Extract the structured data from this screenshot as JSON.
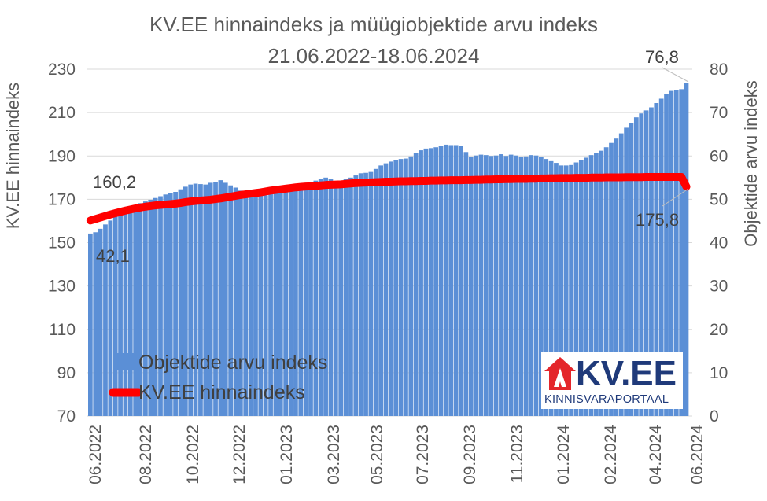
{
  "chart_data": {
    "type": "bar+line",
    "title": "KV.EE hinnaindeks ja müügiobjektide arvu indeks",
    "subtitle": "21.06.2022-18.06.2024",
    "ylabel_left": "KV.EE hinnaindeks",
    "ylabel_right": "Objektide arvu indeks",
    "ylim_left": [
      70,
      230
    ],
    "yticks_left": [
      70,
      90,
      110,
      130,
      150,
      170,
      190,
      210,
      230
    ],
    "ylim_right": [
      0,
      80
    ],
    "yticks_right": [
      0,
      10,
      20,
      30,
      40,
      50,
      60,
      70,
      80
    ],
    "x_tick_labels": [
      "06.2022",
      "08.2022",
      "10.2022",
      "12.2022",
      "01.2023",
      "03.2023",
      "05.2023",
      "07.2023",
      "09.2023",
      "11.2023",
      "01.2024",
      "02.2024",
      "04.2024",
      "06.2024"
    ],
    "legend_placement": "bottom-left",
    "series": [
      {
        "name": "Objektide arvu indeks",
        "type": "bar",
        "axis": "right",
        "color": "#5b8fd6",
        "values": [
          42.1,
          42.4,
          43.2,
          44.2,
          45.1,
          46.0,
          46.8,
          47.5,
          48.2,
          48.7,
          49.1,
          49.5,
          49.9,
          50.3,
          50.7,
          51.1,
          51.4,
          51.7,
          52.3,
          52.9,
          53.4,
          53.6,
          53.5,
          53.4,
          53.8,
          54.0,
          54.4,
          53.8,
          53.2,
          52.7,
          52.0,
          51.7,
          51.8,
          51.5,
          51.0,
          50.9,
          51.2,
          51.4,
          51.6,
          51.8,
          52.2,
          52.6,
          53.0,
          53.4,
          53.9,
          54.3,
          54.7,
          55.0,
          54.6,
          54.1,
          54.2,
          54.6,
          55.0,
          55.5,
          56.0,
          56.1,
          56.3,
          57.0,
          57.8,
          58.3,
          58.7,
          59.1,
          59.3,
          59.4,
          59.9,
          60.6,
          61.3,
          61.7,
          61.8,
          62.0,
          62.3,
          62.6,
          62.5,
          62.5,
          62.4,
          60.9,
          59.7,
          60.1,
          60.3,
          60.2,
          60.0,
          60.1,
          60.4,
          60.0,
          60.3,
          60.1,
          59.7,
          59.9,
          60.2,
          60.1,
          59.8,
          59.3,
          58.8,
          58.4,
          57.8,
          57.8,
          57.9,
          58.5,
          59.0,
          59.6,
          60.2,
          60.6,
          61.2,
          62.0,
          63.0,
          64.0,
          65.2,
          66.5,
          67.6,
          68.9,
          69.8,
          70.5,
          71.2,
          72.2,
          73.2,
          74.2,
          75.0,
          75.1,
          75.4,
          76.8
        ]
      },
      {
        "name": "KV.EE hinnaindeks",
        "type": "line",
        "axis": "left",
        "color": "#ff0000",
        "values": [
          160.2,
          160.9,
          161.6,
          162.3,
          163.0,
          163.6,
          164.2,
          164.8,
          165.3,
          165.8,
          166.2,
          166.6,
          166.9,
          167.2,
          167.4,
          167.6,
          167.8,
          168.0,
          168.3,
          168.7,
          169.0,
          169.2,
          169.4,
          169.6,
          169.8,
          170.1,
          170.4,
          170.8,
          171.2,
          171.6,
          172.0,
          172.3,
          172.6,
          172.9,
          173.2,
          173.6,
          174.0,
          174.3,
          174.6,
          174.9,
          175.2,
          175.5,
          175.7,
          175.9,
          176.0,
          176.2,
          176.4,
          176.6,
          176.7,
          176.8,
          176.9,
          177.1,
          177.3,
          177.5,
          177.6,
          177.7,
          177.8,
          177.9,
          178.0,
          178.1,
          178.1,
          178.2,
          178.3,
          178.3,
          178.4,
          178.4,
          178.5,
          178.5,
          178.6,
          178.6,
          178.7,
          178.7,
          178.8,
          178.8,
          178.8,
          178.9,
          178.9,
          179.0,
          179.0,
          179.1,
          179.1,
          179.2,
          179.2,
          179.3,
          179.3,
          179.4,
          179.4,
          179.4,
          179.5,
          179.5,
          179.6,
          179.6,
          179.7,
          179.7,
          179.8,
          179.8,
          179.8,
          179.9,
          179.9,
          179.9,
          180.0,
          180.0,
          180.0,
          180.1,
          180.1,
          180.1,
          180.1,
          180.2,
          180.2,
          180.2,
          180.2,
          180.3,
          180.3,
          180.3,
          180.3,
          180.3,
          180.3,
          180.3,
          180.3,
          175.8
        ]
      }
    ],
    "annotations": [
      {
        "text": "160,2",
        "series": "KV.EE hinnaindeks",
        "point": "first"
      },
      {
        "text": "42,1",
        "series": "Objektide arvu indeks",
        "point": "first"
      },
      {
        "text": "76,8",
        "series": "Objektide arvu indeks",
        "point": "last"
      },
      {
        "text": "175,8",
        "series": "KV.EE hinnaindeks",
        "point": "last"
      }
    ]
  },
  "logo": {
    "brand": "KV.EE",
    "tagline": "KINNISVARAPORTAAL",
    "colors": {
      "red": "#e4262b",
      "blue": "#1f3a7a"
    }
  }
}
